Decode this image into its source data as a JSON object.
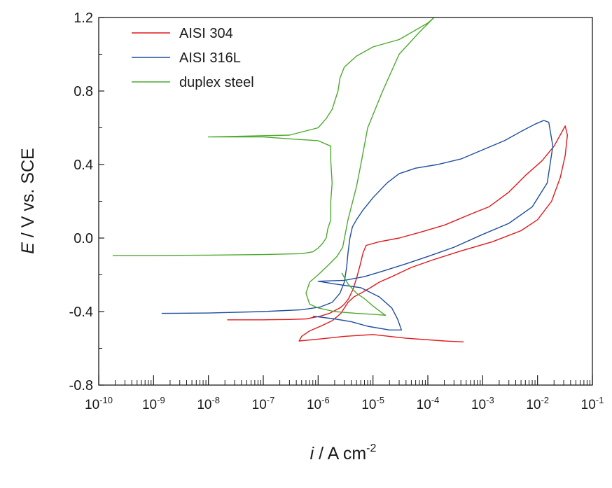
{
  "chart_data": {
    "type": "line",
    "xlabel_var": "i",
    "xlabel_rest": " / A cm",
    "xlabel_sup": "-2",
    "ylabel_var": "E",
    "ylabel_rest": " / V vs. SCE",
    "x_scale": "log",
    "xlim": [
      1e-10,
      0.1
    ],
    "ylim": [
      -0.8,
      1.2
    ],
    "x_ticks": [
      {
        "base": "10",
        "exp": "-10",
        "value": 1e-10
      },
      {
        "base": "10",
        "exp": "-9",
        "value": 1e-09
      },
      {
        "base": "10",
        "exp": "-8",
        "value": 1e-08
      },
      {
        "base": "10",
        "exp": "-7",
        "value": 1e-07
      },
      {
        "base": "10",
        "exp": "-6",
        "value": 1e-06
      },
      {
        "base": "10",
        "exp": "-5",
        "value": 1e-05
      },
      {
        "base": "10",
        "exp": "-4",
        "value": 0.0001
      },
      {
        "base": "10",
        "exp": "-3",
        "value": 0.001
      },
      {
        "base": "10",
        "exp": "-2",
        "value": 0.01
      },
      {
        "base": "10",
        "exp": "-1",
        "value": 0.1
      }
    ],
    "y_ticks": [
      {
        "label": "1.2",
        "value": 1.2
      },
      {
        "label": "0.8",
        "value": 0.8
      },
      {
        "label": "0.4",
        "value": 0.4
      },
      {
        "label": "0.0",
        "value": 0.0
      },
      {
        "label": "-0.4",
        "value": -0.4
      },
      {
        "label": "-0.8",
        "value": -0.8
      }
    ],
    "grid": false,
    "legend_position": "top-left",
    "series": [
      {
        "name": "AISI 304",
        "color": "#e0191b",
        "points": [
          [
            2.2e-08,
            -0.445
          ],
          [
            5e-08,
            -0.445
          ],
          [
            1e-07,
            -0.445
          ],
          [
            3e-07,
            -0.443
          ],
          [
            6e-07,
            -0.44
          ],
          [
            1.1e-06,
            -0.425
          ],
          [
            1.6e-06,
            -0.41
          ],
          [
            2e-06,
            -0.395
          ],
          [
            2.5e-06,
            -0.38
          ],
          [
            3e-06,
            -0.36
          ],
          [
            3.6e-06,
            -0.33
          ],
          [
            4.3e-06,
            -0.28
          ],
          [
            5e-06,
            -0.22
          ],
          [
            5.8e-06,
            -0.15
          ],
          [
            6.6e-06,
            -0.08
          ],
          [
            7.5e-06,
            -0.04
          ],
          [
            1.3e-05,
            -0.02
          ],
          [
            3e-05,
            0.0
          ],
          [
            7e-05,
            0.03
          ],
          [
            0.0002,
            0.07
          ],
          [
            0.0006,
            0.13
          ],
          [
            0.0013,
            0.17
          ],
          [
            0.003,
            0.25
          ],
          [
            0.006,
            0.34
          ],
          [
            0.012,
            0.42
          ],
          [
            0.02,
            0.5
          ],
          [
            0.032,
            0.61
          ],
          [
            0.035,
            0.56
          ],
          [
            0.032,
            0.45
          ],
          [
            0.026,
            0.33
          ],
          [
            0.018,
            0.2
          ],
          [
            0.01,
            0.1
          ],
          [
            0.005,
            0.04
          ],
          [
            0.0015,
            -0.02
          ],
          [
            0.0004,
            -0.07
          ],
          [
            0.00012,
            -0.12
          ],
          [
            5e-05,
            -0.16
          ],
          [
            2.2e-05,
            -0.21
          ],
          [
            1.3e-05,
            -0.24
          ],
          [
            9e-06,
            -0.27
          ],
          [
            6e-06,
            -0.3
          ],
          [
            4.5e-06,
            -0.32
          ],
          [
            3.5e-06,
            -0.35
          ],
          [
            2.6e-06,
            -0.41
          ],
          [
            1.8e-06,
            -0.45
          ],
          [
            1.1e-06,
            -0.48
          ],
          [
            7e-07,
            -0.505
          ],
          [
            5e-07,
            -0.535
          ],
          [
            4.5e-07,
            -0.56
          ],
          [
            1e-06,
            -0.55
          ],
          [
            3e-06,
            -0.535
          ],
          [
            1e-05,
            -0.525
          ],
          [
            4e-05,
            -0.545
          ],
          [
            0.0002,
            -0.56
          ],
          [
            0.00045,
            -0.565
          ]
        ]
      },
      {
        "name": "AISI 316L",
        "color": "#1f4e9e",
        "points": [
          [
            1.4e-09,
            -0.41
          ],
          [
            1e-08,
            -0.408
          ],
          [
            1e-07,
            -0.4
          ],
          [
            5e-07,
            -0.39
          ],
          [
            1.1e-06,
            -0.375
          ],
          [
            1.8e-06,
            -0.35
          ],
          [
            2.5e-06,
            -0.3
          ],
          [
            3e-06,
            -0.24
          ],
          [
            3.3e-06,
            -0.16
          ],
          [
            3.5e-06,
            -0.08
          ],
          [
            3.8e-06,
            0.0
          ],
          [
            4.2e-06,
            0.06
          ],
          [
            5e-06,
            0.1
          ],
          [
            6.5e-06,
            0.15
          ],
          [
            1e-05,
            0.22
          ],
          [
            1.8e-05,
            0.3
          ],
          [
            3e-05,
            0.35
          ],
          [
            6e-05,
            0.38
          ],
          [
            0.00015,
            0.4
          ],
          [
            0.0004,
            0.43
          ],
          [
            0.001,
            0.48
          ],
          [
            0.0025,
            0.53
          ],
          [
            0.005,
            0.58
          ],
          [
            0.009,
            0.62
          ],
          [
            0.013,
            0.64
          ],
          [
            0.016,
            0.63
          ],
          [
            0.019,
            0.5
          ],
          [
            0.015,
            0.3
          ],
          [
            0.008,
            0.17
          ],
          [
            0.003,
            0.08
          ],
          [
            0.001,
            0.02
          ],
          [
            0.0003,
            -0.05
          ],
          [
            0.0001,
            -0.1
          ],
          [
            4e-05,
            -0.14
          ],
          [
            1.5e-05,
            -0.18
          ],
          [
            7e-06,
            -0.21
          ],
          [
            3e-06,
            -0.23
          ],
          [
            1e-06,
            -0.235
          ],
          [
            2e-06,
            -0.25
          ],
          [
            6e-06,
            -0.27
          ],
          [
            1.3e-05,
            -0.32
          ],
          [
            2.2e-05,
            -0.38
          ],
          [
            2.8e-05,
            -0.44
          ],
          [
            3.3e-05,
            -0.5
          ],
          [
            2e-05,
            -0.5
          ],
          [
            8e-06,
            -0.48
          ],
          [
            4e-06,
            -0.455
          ],
          [
            2e-06,
            -0.44
          ],
          [
            8e-07,
            -0.425
          ]
        ]
      },
      {
        "name": "duplex steel",
        "color": "#4daa2e",
        "points": [
          [
            1.8e-10,
            -0.095
          ],
          [
            1e-09,
            -0.095
          ],
          [
            1e-08,
            -0.093
          ],
          [
            1e-07,
            -0.09
          ],
          [
            5e-07,
            -0.085
          ],
          [
            8e-07,
            -0.075
          ],
          [
            1e-06,
            -0.055
          ],
          [
            1.2e-06,
            -0.03
          ],
          [
            1.4e-06,
            0.0
          ],
          [
            1.5e-06,
            0.05
          ],
          [
            1.7e-06,
            0.1
          ],
          [
            1.7e-06,
            0.2
          ],
          [
            1.8e-06,
            0.3
          ],
          [
            1.7e-06,
            0.42
          ],
          [
            1.7e-06,
            0.5
          ],
          [
            1e-06,
            0.53
          ],
          [
            3e-07,
            0.54
          ],
          [
            1e-07,
            0.55
          ],
          [
            1e-08,
            0.55
          ],
          [
            3e-07,
            0.56
          ],
          [
            1e-06,
            0.6
          ],
          [
            1.4e-06,
            0.65
          ],
          [
            1.8e-06,
            0.7
          ],
          [
            2.3e-06,
            0.8
          ],
          [
            2.5e-06,
            0.87
          ],
          [
            3e-06,
            0.93
          ],
          [
            5e-06,
            0.99
          ],
          [
            1e-05,
            1.04
          ],
          [
            3e-05,
            1.08
          ],
          [
            0.0001,
            1.17
          ],
          [
            0.00013,
            1.2
          ],
          [
            7e-05,
            1.12
          ],
          [
            3e-05,
            1.0
          ],
          [
            1.5e-05,
            0.8
          ],
          [
            8e-06,
            0.6
          ],
          [
            6e-06,
            0.4
          ],
          [
            5e-06,
            0.28
          ],
          [
            3.5e-06,
            0.1
          ],
          [
            2.8e-06,
            -0.05
          ],
          [
            2.2e-06,
            -0.1
          ],
          [
            1.5e-06,
            -0.15
          ],
          [
            1e-06,
            -0.2
          ],
          [
            7e-07,
            -0.24
          ],
          [
            6e-07,
            -0.3
          ],
          [
            7e-07,
            -0.36
          ],
          [
            1e-06,
            -0.38
          ],
          [
            2e-06,
            -0.4
          ],
          [
            5e-06,
            -0.41
          ],
          [
            1e-05,
            -0.415
          ],
          [
            1.7e-05,
            -0.42
          ],
          [
            1.5e-05,
            -0.41
          ],
          [
            1e-05,
            -0.37
          ],
          [
            7e-06,
            -0.33
          ],
          [
            5e-06,
            -0.3
          ],
          [
            3.5e-06,
            -0.25
          ],
          [
            2.7e-06,
            -0.19
          ]
        ]
      }
    ]
  }
}
